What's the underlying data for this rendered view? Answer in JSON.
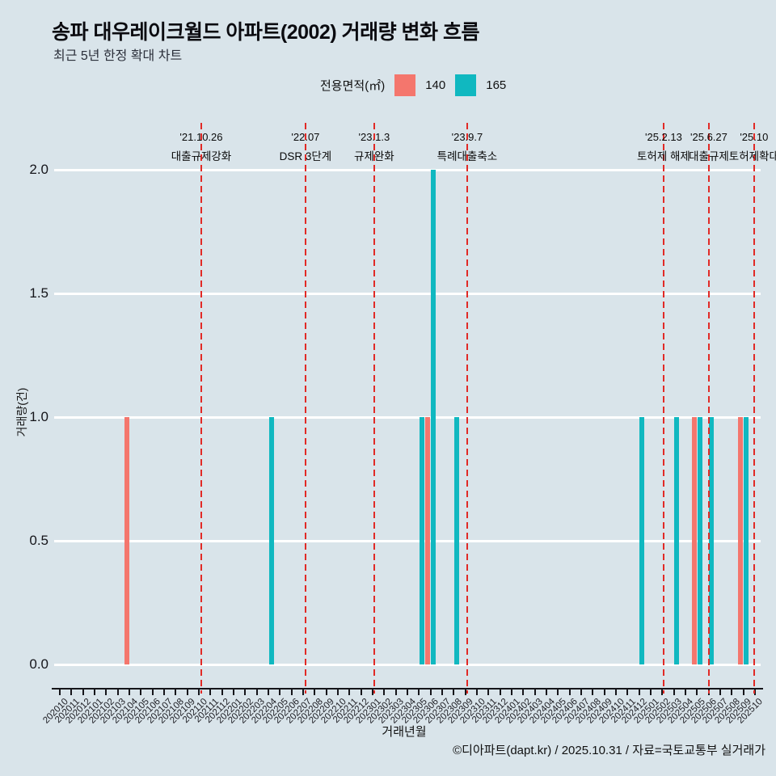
{
  "title": "송파 대우레이크월드 아파트(2002) 거래량 변화 흐름",
  "subtitle": "최근 5년 한정 확대 차트",
  "legend": {
    "label": "전용면적(㎡)",
    "items": [
      {
        "name": "140",
        "color": "#f4766d"
      },
      {
        "name": "165",
        "color": "#10b8c0"
      }
    ]
  },
  "footer": "©디아파트(dapt.kr) / 2025.10.31 / 자료=국토교통부 실거래가",
  "chart_data": {
    "type": "bar",
    "title": "송파 대우레이크월드 아파트(2002) 거래량 변화 흐름",
    "subtitle": "최근 5년 한정 확대 차트",
    "xlabel": "거래년월",
    "ylabel": "거래량(건)",
    "ylim": [
      0,
      2.0
    ],
    "yticks": [
      "0.0",
      "0.5",
      "1.0",
      "1.5",
      "2.0"
    ],
    "grid": true,
    "legend_position": "top",
    "categories": [
      "202010",
      "202011",
      "202012",
      "202101",
      "202102",
      "202103",
      "202104",
      "202105",
      "202106",
      "202107",
      "202108",
      "202109",
      "202110",
      "202111",
      "202112",
      "202201",
      "202202",
      "202203",
      "202204",
      "202205",
      "202206",
      "202207",
      "202208",
      "202209",
      "202210",
      "202211",
      "202212",
      "202301",
      "202302",
      "202303",
      "202304",
      "202305",
      "202306",
      "202307",
      "202308",
      "202309",
      "202310",
      "202311",
      "202312",
      "202401",
      "202402",
      "202403",
      "202404",
      "202405",
      "202406",
      "202407",
      "202408",
      "202409",
      "202410",
      "202411",
      "202412",
      "202501",
      "202502",
      "202503",
      "202504",
      "202505",
      "202506",
      "202507",
      "202508",
      "202509",
      "202510"
    ],
    "series": [
      {
        "name": "140",
        "color": "#f4766d",
        "points": [
          {
            "month": "202104",
            "value": 1
          },
          {
            "month": "202306",
            "value": 1
          },
          {
            "month": "202505",
            "value": 1
          },
          {
            "month": "202509",
            "value": 1
          }
        ]
      },
      {
        "name": "165",
        "color": "#10b8c0",
        "points": [
          {
            "month": "202204",
            "value": 1
          },
          {
            "month": "202305",
            "value": 1
          },
          {
            "month": "202306",
            "value": 2
          },
          {
            "month": "202308",
            "value": 1
          },
          {
            "month": "202412",
            "value": 1
          },
          {
            "month": "202503",
            "value": 1
          },
          {
            "month": "202505",
            "value": 1
          },
          {
            "month": "202506",
            "value": 1
          },
          {
            "month": "202509",
            "value": 1
          }
        ]
      }
    ],
    "annotations": [
      {
        "date": "'21.10.26",
        "label": "대출규제강화",
        "month_pos": 12.7
      },
      {
        "date": "'22.07",
        "label": "DSR 3단계",
        "month_pos": 21.7
      },
      {
        "date": "'23.1.3",
        "label": "규제완화",
        "month_pos": 27.63
      },
      {
        "date": "'23.9.7",
        "label": "특례대출축소",
        "month_pos": 35.66
      },
      {
        "date": "'25.2.13",
        "label": "토허제 해제",
        "month_pos": 52.62
      },
      {
        "date": "'25.6.27",
        "label": "대출규제",
        "month_pos": 56.53
      },
      {
        "date": "'25.10",
        "label": "토허제확대",
        "month_pos": 60.43
      }
    ],
    "annotation_line_color": "#e12a26",
    "gridline_color": "#ffffff",
    "background_color": "#d9e4ea"
  }
}
